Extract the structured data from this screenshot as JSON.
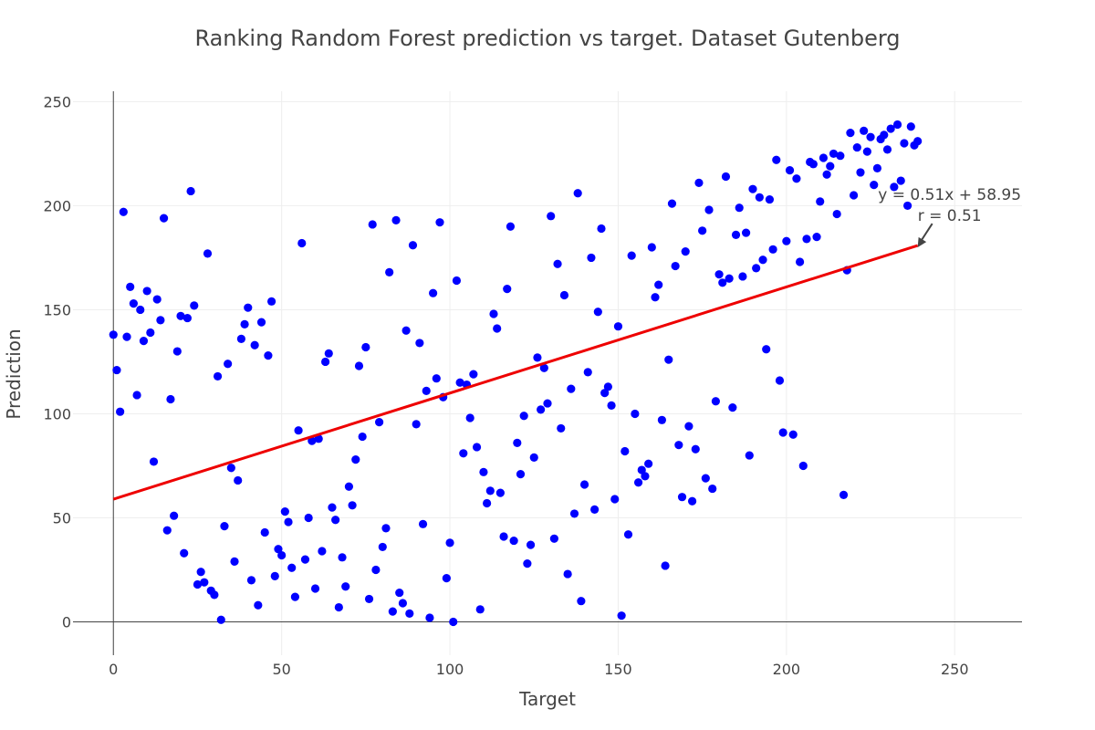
{
  "chart_data": {
    "type": "scatter",
    "title": "Ranking Random Forest prediction vs target. Dataset Gutenberg",
    "xlabel": "Target",
    "ylabel": "Prediction",
    "xlim": [
      -12,
      270
    ],
    "ylim": [
      -16,
      255
    ],
    "x_ticks": [
      0,
      50,
      100,
      150,
      200,
      250
    ],
    "y_ticks": [
      0,
      50,
      100,
      150,
      200,
      250
    ],
    "grid": true,
    "point_color": "#0000ff",
    "fit_line": {
      "slope": 0.51,
      "intercept": 58.95,
      "x_start": 0,
      "x_end": 239,
      "color": "#ee0000"
    },
    "annotation": {
      "lines": [
        "y = 0.51x + 58.95",
        "r = 0.51"
      ],
      "arrow_target": [
        239,
        180
      ]
    },
    "points": [
      [
        0,
        138
      ],
      [
        1,
        121
      ],
      [
        2,
        101
      ],
      [
        3,
        197
      ],
      [
        4,
        137
      ],
      [
        5,
        161
      ],
      [
        6,
        153
      ],
      [
        7,
        109
      ],
      [
        8,
        150
      ],
      [
        9,
        135
      ],
      [
        10,
        159
      ],
      [
        11,
        139
      ],
      [
        12,
        77
      ],
      [
        13,
        155
      ],
      [
        14,
        145
      ],
      [
        15,
        194
      ],
      [
        16,
        44
      ],
      [
        17,
        107
      ],
      [
        18,
        51
      ],
      [
        19,
        130
      ],
      [
        20,
        147
      ],
      [
        21,
        33
      ],
      [
        22,
        146
      ],
      [
        23,
        207
      ],
      [
        24,
        152
      ],
      [
        25,
        18
      ],
      [
        26,
        24
      ],
      [
        27,
        19
      ],
      [
        28,
        177
      ],
      [
        29,
        15
      ],
      [
        30,
        13
      ],
      [
        31,
        118
      ],
      [
        32,
        1
      ],
      [
        33,
        46
      ],
      [
        34,
        124
      ],
      [
        35,
        74
      ],
      [
        36,
        29
      ],
      [
        37,
        68
      ],
      [
        38,
        136
      ],
      [
        39,
        143
      ],
      [
        40,
        151
      ],
      [
        41,
        20
      ],
      [
        42,
        133
      ],
      [
        43,
        8
      ],
      [
        44,
        144
      ],
      [
        45,
        43
      ],
      [
        46,
        128
      ],
      [
        47,
        154
      ],
      [
        48,
        22
      ],
      [
        49,
        35
      ],
      [
        50,
        32
      ],
      [
        51,
        53
      ],
      [
        52,
        48
      ],
      [
        53,
        26
      ],
      [
        54,
        12
      ],
      [
        55,
        92
      ],
      [
        56,
        182
      ],
      [
        57,
        30
      ],
      [
        58,
        50
      ],
      [
        59,
        87
      ],
      [
        60,
        16
      ],
      [
        61,
        88
      ],
      [
        62,
        34
      ],
      [
        63,
        125
      ],
      [
        64,
        129
      ],
      [
        65,
        55
      ],
      [
        66,
        49
      ],
      [
        67,
        7
      ],
      [
        68,
        31
      ],
      [
        69,
        17
      ],
      [
        70,
        65
      ],
      [
        71,
        56
      ],
      [
        72,
        78
      ],
      [
        73,
        123
      ],
      [
        74,
        89
      ],
      [
        75,
        132
      ],
      [
        76,
        11
      ],
      [
        77,
        191
      ],
      [
        78,
        25
      ],
      [
        79,
        96
      ],
      [
        80,
        36
      ],
      [
        81,
        45
      ],
      [
        82,
        168
      ],
      [
        83,
        5
      ],
      [
        84,
        193
      ],
      [
        85,
        14
      ],
      [
        86,
        9
      ],
      [
        87,
        140
      ],
      [
        88,
        4
      ],
      [
        89,
        181
      ],
      [
        90,
        95
      ],
      [
        91,
        134
      ],
      [
        92,
        47
      ],
      [
        93,
        111
      ],
      [
        94,
        2
      ],
      [
        95,
        158
      ],
      [
        96,
        117
      ],
      [
        97,
        192
      ],
      [
        98,
        108
      ],
      [
        99,
        21
      ],
      [
        100,
        38
      ],
      [
        101,
        0
      ],
      [
        102,
        164
      ],
      [
        103,
        115
      ],
      [
        104,
        81
      ],
      [
        105,
        114
      ],
      [
        106,
        98
      ],
      [
        107,
        119
      ],
      [
        108,
        84
      ],
      [
        109,
        6
      ],
      [
        110,
        72
      ],
      [
        111,
        57
      ],
      [
        112,
        63
      ],
      [
        113,
        148
      ],
      [
        114,
        141
      ],
      [
        115,
        62
      ],
      [
        116,
        41
      ],
      [
        117,
        160
      ],
      [
        118,
        190
      ],
      [
        119,
        39
      ],
      [
        120,
        86
      ],
      [
        121,
        71
      ],
      [
        122,
        99
      ],
      [
        123,
        28
      ],
      [
        124,
        37
      ],
      [
        125,
        79
      ],
      [
        126,
        127
      ],
      [
        127,
        102
      ],
      [
        128,
        122
      ],
      [
        129,
        105
      ],
      [
        130,
        195
      ],
      [
        131,
        40
      ],
      [
        132,
        172
      ],
      [
        133,
        93
      ],
      [
        134,
        157
      ],
      [
        135,
        23
      ],
      [
        136,
        112
      ],
      [
        137,
        52
      ],
      [
        138,
        206
      ],
      [
        139,
        10
      ],
      [
        140,
        66
      ],
      [
        141,
        120
      ],
      [
        142,
        175
      ],
      [
        143,
        54
      ],
      [
        144,
        149
      ],
      [
        145,
        189
      ],
      [
        146,
        110
      ],
      [
        147,
        113
      ],
      [
        148,
        104
      ],
      [
        149,
        59
      ],
      [
        150,
        142
      ],
      [
        151,
        3
      ],
      [
        152,
        82
      ],
      [
        153,
        42
      ],
      [
        154,
        176
      ],
      [
        155,
        100
      ],
      [
        156,
        67
      ],
      [
        157,
        73
      ],
      [
        158,
        70
      ],
      [
        159,
        76
      ],
      [
        160,
        180
      ],
      [
        161,
        156
      ],
      [
        162,
        162
      ],
      [
        163,
        97
      ],
      [
        164,
        27
      ],
      [
        165,
        126
      ],
      [
        166,
        201
      ],
      [
        167,
        171
      ],
      [
        168,
        85
      ],
      [
        169,
        60
      ],
      [
        170,
        178
      ],
      [
        171,
        94
      ],
      [
        172,
        58
      ],
      [
        173,
        83
      ],
      [
        174,
        211
      ],
      [
        175,
        188
      ],
      [
        176,
        69
      ],
      [
        177,
        198
      ],
      [
        178,
        64
      ],
      [
        179,
        106
      ],
      [
        180,
        167
      ],
      [
        181,
        163
      ],
      [
        182,
        214
      ],
      [
        183,
        165
      ],
      [
        184,
        103
      ],
      [
        185,
        186
      ],
      [
        186,
        199
      ],
      [
        187,
        166
      ],
      [
        188,
        187
      ],
      [
        189,
        80
      ],
      [
        190,
        208
      ],
      [
        191,
        170
      ],
      [
        192,
        204
      ],
      [
        193,
        174
      ],
      [
        194,
        131
      ],
      [
        195,
        203
      ],
      [
        196,
        179
      ],
      [
        197,
        222
      ],
      [
        198,
        116
      ],
      [
        199,
        91
      ],
      [
        200,
        183
      ],
      [
        201,
        217
      ],
      [
        202,
        90
      ],
      [
        203,
        213
      ],
      [
        204,
        173
      ],
      [
        205,
        75
      ],
      [
        206,
        184
      ],
      [
        207,
        221
      ],
      [
        208,
        220
      ],
      [
        209,
        185
      ],
      [
        210,
        202
      ],
      [
        211,
        223
      ],
      [
        212,
        215
      ],
      [
        213,
        219
      ],
      [
        214,
        225
      ],
      [
        215,
        196
      ],
      [
        216,
        224
      ],
      [
        217,
        61
      ],
      [
        218,
        169
      ],
      [
        219,
        235
      ],
      [
        220,
        205
      ],
      [
        221,
        228
      ],
      [
        222,
        216
      ],
      [
        223,
        236
      ],
      [
        224,
        226
      ],
      [
        225,
        233
      ],
      [
        226,
        210
      ],
      [
        227,
        218
      ],
      [
        228,
        232
      ],
      [
        229,
        234
      ],
      [
        230,
        227
      ],
      [
        231,
        237
      ],
      [
        232,
        209
      ],
      [
        233,
        239
      ],
      [
        234,
        212
      ],
      [
        235,
        230
      ],
      [
        236,
        200
      ],
      [
        237,
        238
      ],
      [
        238,
        229
      ],
      [
        239,
        231
      ]
    ]
  }
}
